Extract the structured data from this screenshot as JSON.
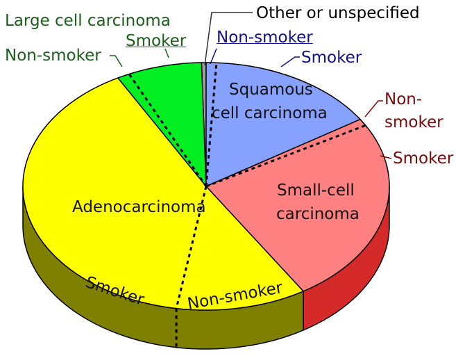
{
  "chart_data": {
    "type": "pie",
    "style": "3d",
    "title": "",
    "unit": "percent (estimated from slice angles)",
    "slices": [
      {
        "name": "Other or unspecified",
        "value": 0.4,
        "color": "#a0a0a0",
        "side_color": "#707070"
      },
      {
        "name": "Squamous cell carcinoma",
        "subgroups": [
          {
            "name": "Non-smoker",
            "value": 0.9
          },
          {
            "name": "Smoker",
            "value": 15.0
          }
        ],
        "color": "#87a1ff",
        "side_color": "#4060c0"
      },
      {
        "name": "Small-cell carcinoma",
        "subgroups": [
          {
            "name": "Non-smoker",
            "value": 0.9
          },
          {
            "name": "Smoker",
            "value": 24.3
          }
        ],
        "color": "#ff8080",
        "side_color": "#d42a2a"
      },
      {
        "name": "Adenocarcinoma",
        "subgroups": [
          {
            "name": "Non-smoker",
            "value": 11.5
          },
          {
            "name": "Smoker",
            "value": 39.4
          }
        ],
        "color": "#ffff00",
        "side_color": "#808000"
      },
      {
        "name": "Large cell carcinoma",
        "subgroups": [
          {
            "name": "Non-smoker",
            "value": 1.1
          },
          {
            "name": "Smoker",
            "value": 6.5
          }
        ],
        "color": "#00ee22",
        "side_color": "#008000"
      }
    ]
  },
  "labels": {
    "other": "Other or unspecified",
    "squamous": [
      "Squamous",
      "cell carcinoma"
    ],
    "squamous_nonsmoker": "Non-smoker",
    "squamous_smoker": "Smoker",
    "small_cell": [
      "Small-cell",
      "carcinoma"
    ],
    "small_nonsmoker": [
      "Non-",
      "smoker"
    ],
    "small_smoker": "Smoker",
    "adeno": "Adenocarcinoma",
    "adeno_smoker": "Smoker",
    "adeno_nonsmoker": "Non-smoker",
    "large": "Large cell carcinoma",
    "large_smoker": "Smoker",
    "large_nonsmoker": "Non-smoker"
  }
}
